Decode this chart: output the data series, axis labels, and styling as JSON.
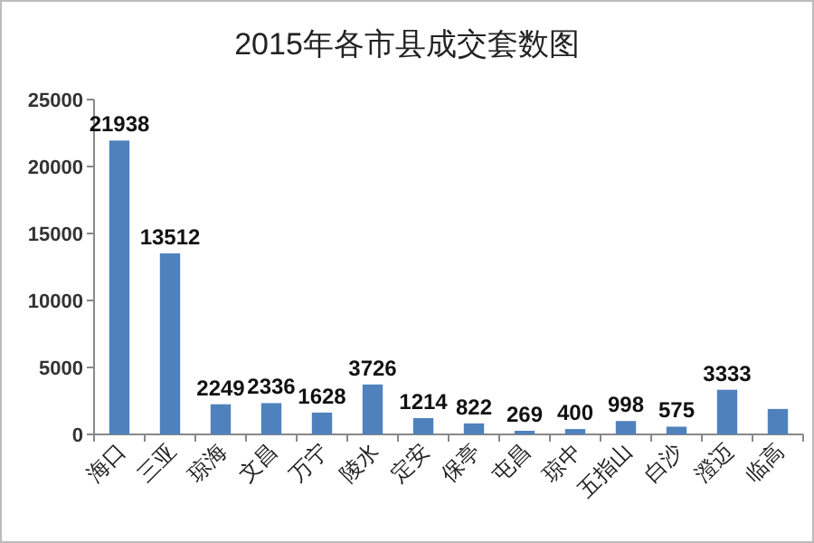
{
  "chart_data": {
    "type": "bar",
    "title": "2015年各市县成交套数图",
    "categories": [
      "海口",
      "三亚",
      "琼海",
      "文昌",
      "万宁",
      "陵水",
      "定安",
      "保亭",
      "屯昌",
      "琼中",
      "五指山",
      "白沙",
      "澄迈",
      "临高"
    ],
    "values": [
      21938,
      13512,
      2249,
      2336,
      1628,
      3726,
      1214,
      822,
      269,
      400,
      998,
      575,
      3333,
      1900
    ],
    "value_labels": [
      "21938",
      "13512",
      "2249",
      "2336",
      "1628",
      "3726",
      "1214",
      "822",
      "269",
      "400",
      "998",
      "575",
      "3333",
      null
    ],
    "color": "#4f81bd",
    "ylim": [
      0,
      25000
    ],
    "yticks": [
      0,
      5000,
      10000,
      15000,
      20000,
      25000
    ],
    "grid": false
  }
}
